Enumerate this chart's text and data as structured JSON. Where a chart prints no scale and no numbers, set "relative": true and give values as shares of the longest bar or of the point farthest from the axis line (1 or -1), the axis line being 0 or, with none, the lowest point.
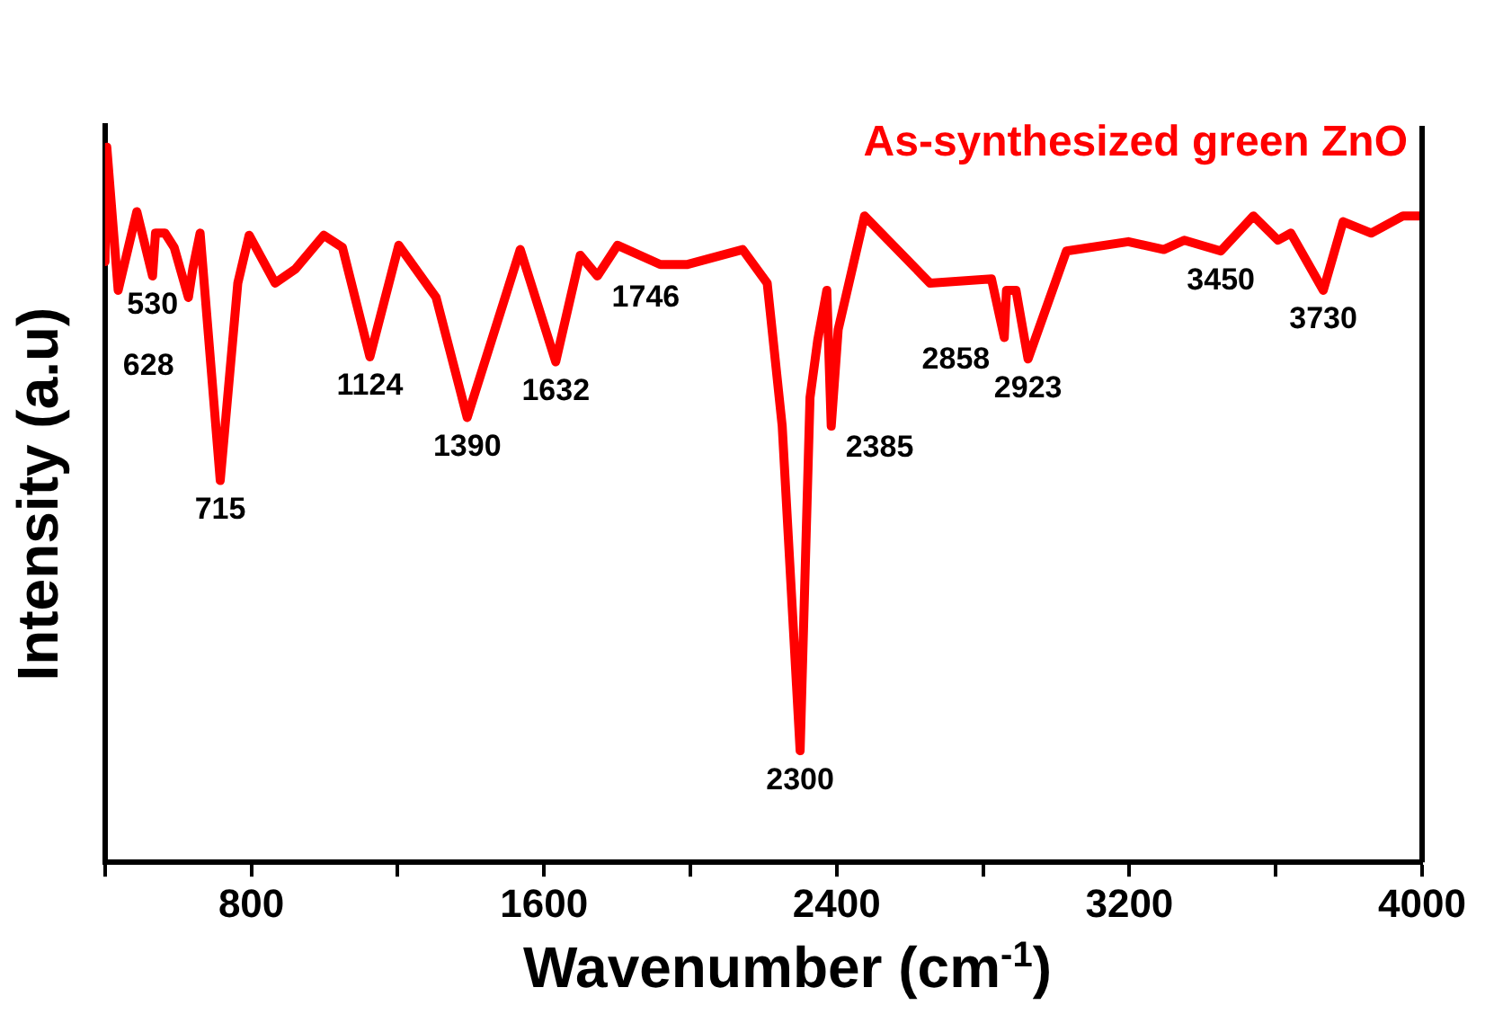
{
  "chart_data": {
    "type": "line",
    "title": "As-synthesized green ZnO",
    "xlabel": "Wavenumber (cm$^{-1}$)",
    "ylabel": "Intensity (a.u)",
    "relative": true,
    "grid": false,
    "legend": false,
    "xlim": [
      400,
      4000
    ],
    "xticks": [
      {
        "value": 400,
        "label": null
      },
      800,
      {
        "value": 1200,
        "label": null
      },
      1600,
      {
        "value": 2000,
        "label": null
      },
      2400,
      {
        "value": 2800,
        "label": null
      },
      3200,
      {
        "value": 3600,
        "label": null
      },
      4000
    ],
    "x": [
      400,
      405,
      436,
      487,
      530,
      538,
      564,
      589,
      628,
      640,
      660,
      715,
      763,
      794,
      865,
      921,
      998,
      1049,
      1124,
      1203,
      1305,
      1390,
      1535,
      1632,
      1699,
      1746,
      1801,
      1918,
      1990,
      2143,
      2210,
      2251,
      2300,
      2327,
      2348,
      2373,
      2385,
      2404,
      2476,
      2655,
      2823,
      2858,
      2864,
      2890,
      2923,
      3028,
      3197,
      3294,
      3350,
      3450,
      3539,
      3606,
      3641,
      3730,
      3784,
      3861,
      3948,
      4000
    ],
    "series": [
      {
        "color": "#ff0000",
        "values": [
          0.84,
          1,
          0.8,
          0.91,
          0.82,
          0.88,
          0.88,
          0.86,
          0.79,
          0.83,
          0.88,
          0.534,
          0.81,
          0.877,
          0.81,
          0.83,
          0.877,
          0.86,
          0.707,
          0.863,
          0.79,
          0.622,
          0.857,
          0.7,
          0.849,
          0.82,
          0.863,
          0.836,
          0.836,
          0.857,
          0.81,
          0.61,
          0.156,
          0.65,
          0.73,
          0.8,
          0.61,
          0.745,
          0.904,
          0.81,
          0.816,
          0.734,
          0.8,
          0.8,
          0.704,
          0.855,
          0.868,
          0.857,
          0.87,
          0.855,
          0.904,
          0.87,
          0.88,
          0.8,
          0.896,
          0.88,
          0.904,
          0.904
        ]
      }
    ],
    "annotations": [
      {
        "text": "530",
        "x": 530,
        "y": 0.82
      },
      {
        "text": "628",
        "x": 628,
        "y": 0.79
      },
      {
        "text": "715",
        "x": 715,
        "y": 0.534
      },
      {
        "text": "1124",
        "x": 1124,
        "y": 0.707
      },
      {
        "text": "1390",
        "x": 1390,
        "y": 0.622
      },
      {
        "text": "1632",
        "x": 1632,
        "y": 0.7
      },
      {
        "text": "1746",
        "x": 1746,
        "y": 0.82
      },
      {
        "text": "2300",
        "x": 2300,
        "y": 0.156
      },
      {
        "text": "2385",
        "x": 2385,
        "y": 0.61
      },
      {
        "text": "2858",
        "x": 2858,
        "y": 0.734
      },
      {
        "text": "2923",
        "x": 2923,
        "y": 0.704
      },
      {
        "text": "3450",
        "x": 3450,
        "y": 0.855
      },
      {
        "text": "3730",
        "x": 3730,
        "y": 0.8
      }
    ]
  }
}
